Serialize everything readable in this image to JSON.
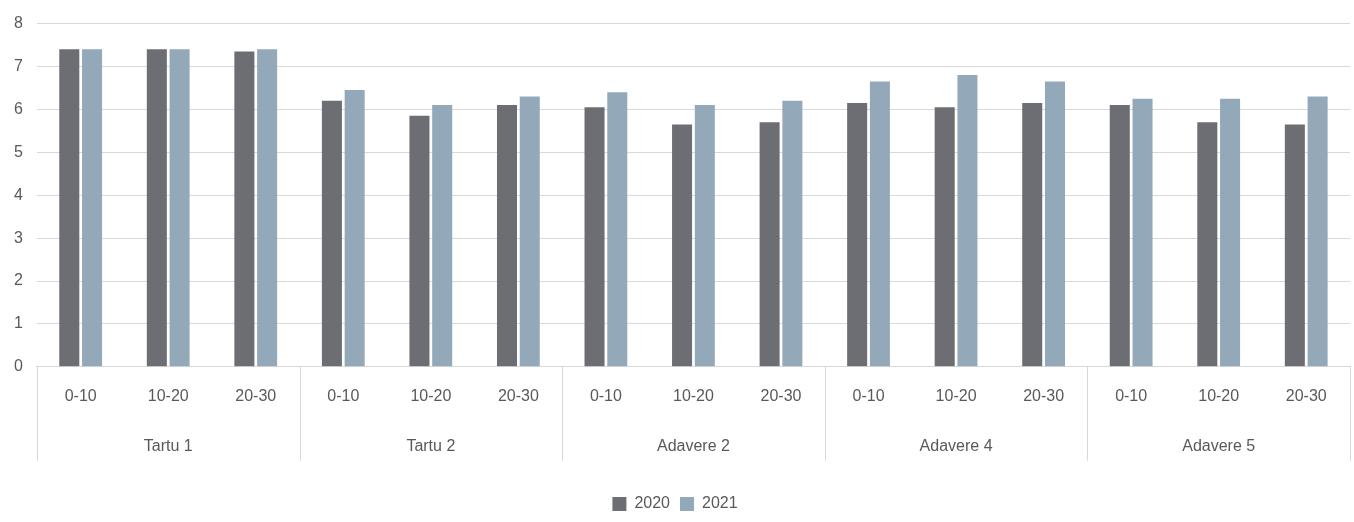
{
  "chart_data": {
    "type": "bar",
    "categories": [
      "0-10",
      "10-20",
      "20-30",
      "0-10",
      "10-20",
      "20-30",
      "0-10",
      "10-20",
      "20-30",
      "0-10",
      "10-20",
      "20-30",
      "0-10",
      "10-20",
      "20-30"
    ],
    "annotations": [
      "Tartu 1",
      "Tartu 2",
      "Adavere 2",
      "Adavere 4",
      "Adavere 5"
    ],
    "series": [
      {
        "name": "2020",
        "color": "#6d6e73",
        "values": [
          7.4,
          7.4,
          7.35,
          6.2,
          5.85,
          6.1,
          6.05,
          5.65,
          5.7,
          6.15,
          6.05,
          6.15,
          6.1,
          5.7,
          5.65
        ]
      },
      {
        "name": "2021",
        "color": "#93a9b9",
        "values": [
          7.4,
          7.4,
          7.4,
          6.45,
          6.1,
          6.3,
          6.4,
          6.1,
          6.2,
          6.65,
          6.8,
          6.65,
          6.25,
          6.25,
          6.3
        ]
      }
    ],
    "ylim": [
      0,
      8
    ],
    "yticks": [
      0,
      1,
      2,
      3,
      4,
      5,
      6,
      7,
      8
    ],
    "grid": "y",
    "legend": "bottom"
  }
}
